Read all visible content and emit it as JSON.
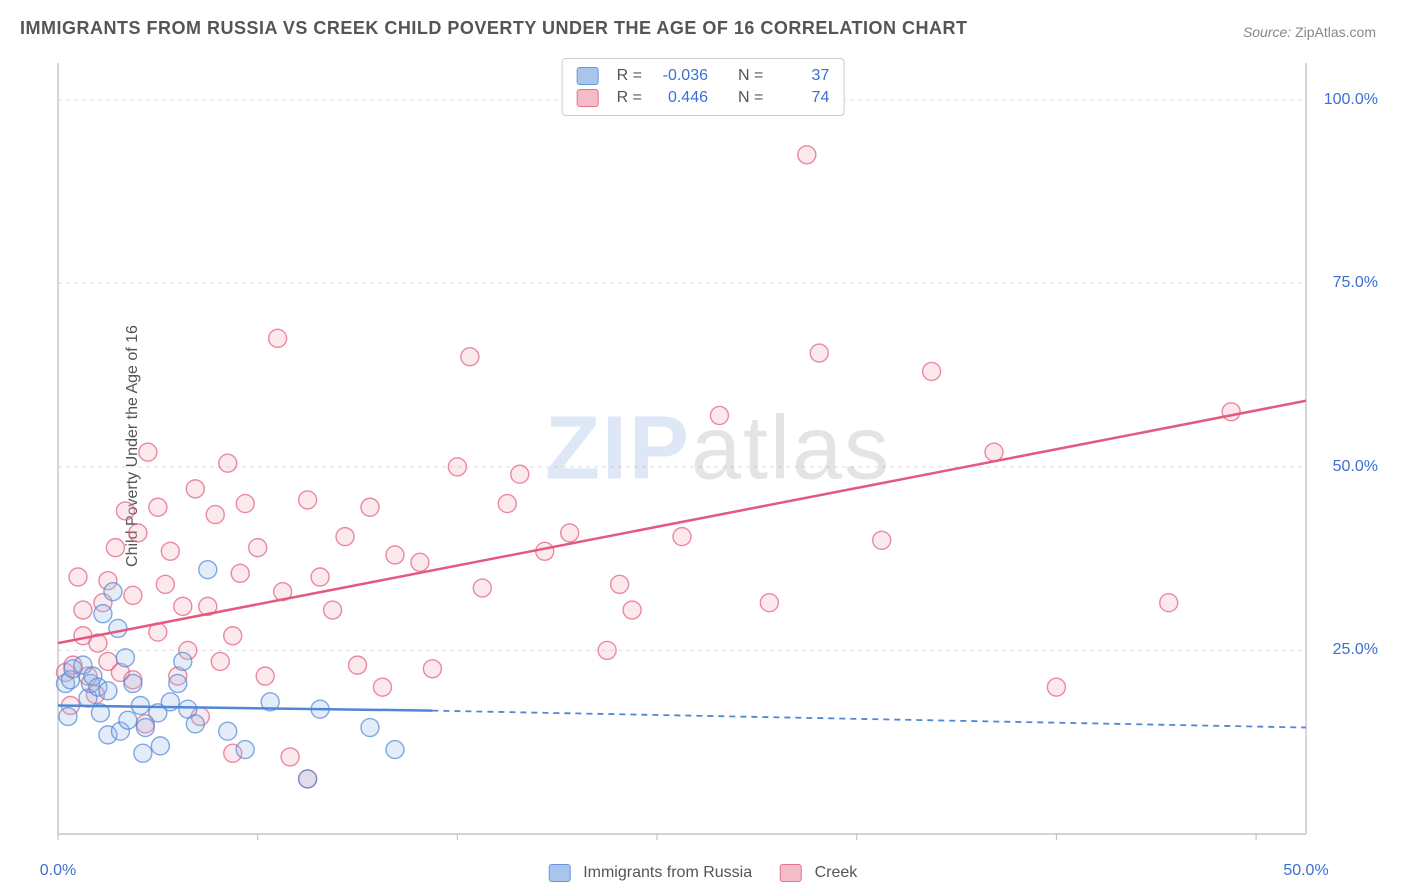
{
  "title": "IMMIGRANTS FROM RUSSIA VS CREEK CHILD POVERTY UNDER THE AGE OF 16 CORRELATION CHART",
  "source_label": "Source:",
  "source_value": "ZipAtlas.com",
  "ylabel": "Child Poverty Under the Age of 16",
  "watermark_a": "ZIP",
  "watermark_b": "atlas",
  "chart": {
    "type": "scatter",
    "xlim": [
      0,
      50
    ],
    "ylim": [
      0,
      105
    ],
    "xticks": [
      0,
      50
    ],
    "xtick_labels": [
      "0.0%",
      "50.0%"
    ],
    "yticks": [
      25,
      50,
      75,
      100
    ],
    "ytick_labels": [
      "25.0%",
      "50.0%",
      "75.0%",
      "100.0%"
    ],
    "x_minor_ticks": [
      0,
      8,
      16,
      24,
      32,
      40,
      48
    ],
    "background_color": "#ffffff",
    "grid_color": "#dddddd",
    "axis_color": "#bbbbbb",
    "tick_label_color": "#3b6fd4",
    "marker_radius": 9,
    "marker_fill_opacity": 0.28,
    "marker_stroke_width": 1.4,
    "trend_line_width": 2.5,
    "trend_dash_width": 1.8
  },
  "series": {
    "blue": {
      "label": "Immigrants from Russia",
      "color": "#4f86d6",
      "fill": "#9cbce8",
      "R": "-0.036",
      "N": "37",
      "points": [
        [
          0.3,
          20.5
        ],
        [
          0.5,
          21.0
        ],
        [
          0.6,
          22.5
        ],
        [
          0.4,
          16.0
        ],
        [
          1.0,
          23.0
        ],
        [
          1.2,
          18.5
        ],
        [
          1.3,
          20.5
        ],
        [
          1.4,
          21.5
        ],
        [
          1.6,
          20.0
        ],
        [
          1.7,
          16.5
        ],
        [
          1.8,
          30.0
        ],
        [
          2.0,
          19.5
        ],
        [
          2.0,
          13.5
        ],
        [
          2.2,
          33.0
        ],
        [
          2.4,
          28.0
        ],
        [
          2.5,
          14.0
        ],
        [
          2.7,
          24.0
        ],
        [
          2.8,
          15.5
        ],
        [
          3.0,
          20.5
        ],
        [
          3.3,
          17.5
        ],
        [
          3.4,
          11.0
        ],
        [
          3.5,
          14.5
        ],
        [
          4.0,
          16.5
        ],
        [
          4.1,
          12.0
        ],
        [
          4.5,
          18.0
        ],
        [
          4.8,
          20.5
        ],
        [
          5.0,
          23.5
        ],
        [
          5.2,
          17.0
        ],
        [
          5.5,
          15.0
        ],
        [
          6.0,
          36.0
        ],
        [
          6.8,
          14.0
        ],
        [
          7.5,
          11.5
        ],
        [
          8.5,
          18.0
        ],
        [
          10.0,
          7.5
        ],
        [
          10.5,
          17.0
        ],
        [
          12.5,
          14.5
        ],
        [
          13.5,
          11.5
        ]
      ],
      "trend": {
        "solid": [
          [
            0,
            17.5
          ],
          [
            15,
            16.8
          ]
        ],
        "dashed": [
          [
            15,
            16.8
          ],
          [
            50,
            14.5
          ]
        ]
      }
    },
    "pink": {
      "label": "Creek",
      "color": "#e25a7d",
      "fill": "#f3b0c0",
      "R": "0.446",
      "N": "74",
      "points": [
        [
          0.3,
          22.0
        ],
        [
          0.5,
          17.5
        ],
        [
          0.6,
          23.0
        ],
        [
          0.8,
          35.0
        ],
        [
          1.0,
          27.0
        ],
        [
          1.0,
          30.5
        ],
        [
          1.2,
          21.5
        ],
        [
          1.5,
          19.0
        ],
        [
          1.6,
          26.0
        ],
        [
          1.8,
          31.5
        ],
        [
          2.0,
          23.5
        ],
        [
          2.0,
          34.5
        ],
        [
          2.3,
          39.0
        ],
        [
          2.5,
          22.0
        ],
        [
          2.7,
          44.0
        ],
        [
          3.0,
          21.0
        ],
        [
          3.0,
          32.5
        ],
        [
          3.2,
          41.0
        ],
        [
          3.5,
          15.0
        ],
        [
          3.6,
          52.0
        ],
        [
          4.0,
          27.5
        ],
        [
          4.0,
          44.5
        ],
        [
          4.3,
          34.0
        ],
        [
          4.5,
          38.5
        ],
        [
          4.8,
          21.5
        ],
        [
          5.0,
          31.0
        ],
        [
          5.2,
          25.0
        ],
        [
          5.5,
          47.0
        ],
        [
          5.7,
          16.0
        ],
        [
          6.0,
          31.0
        ],
        [
          6.3,
          43.5
        ],
        [
          6.5,
          23.5
        ],
        [
          6.8,
          50.5
        ],
        [
          7.0,
          11.0
        ],
        [
          7.0,
          27.0
        ],
        [
          7.3,
          35.5
        ],
        [
          7.5,
          45.0
        ],
        [
          8.0,
          39.0
        ],
        [
          8.3,
          21.5
        ],
        [
          8.8,
          67.5
        ],
        [
          9.0,
          33.0
        ],
        [
          9.3,
          10.5
        ],
        [
          10.0,
          45.5
        ],
        [
          10.0,
          7.5
        ],
        [
          10.5,
          35.0
        ],
        [
          11.0,
          30.5
        ],
        [
          11.5,
          40.5
        ],
        [
          12.0,
          23.0
        ],
        [
          12.5,
          44.5
        ],
        [
          13.0,
          20.0
        ],
        [
          13.5,
          38.0
        ],
        [
          14.5,
          37.0
        ],
        [
          15.0,
          22.5
        ],
        [
          16.0,
          50.0
        ],
        [
          16.5,
          65.0
        ],
        [
          17.0,
          33.5
        ],
        [
          18.0,
          45.0
        ],
        [
          18.5,
          49.0
        ],
        [
          19.5,
          38.5
        ],
        [
          20.5,
          41.0
        ],
        [
          22.0,
          25.0
        ],
        [
          22.5,
          34.0
        ],
        [
          23.0,
          30.5
        ],
        [
          25.0,
          40.5
        ],
        [
          26.5,
          57.0
        ],
        [
          28.5,
          31.5
        ],
        [
          30.0,
          92.5
        ],
        [
          30.5,
          65.5
        ],
        [
          33.0,
          40.0
        ],
        [
          35.0,
          63.0
        ],
        [
          37.5,
          52.0
        ],
        [
          40.0,
          20.0
        ],
        [
          44.5,
          31.5
        ],
        [
          47.0,
          57.5
        ]
      ],
      "trend": {
        "solid": [
          [
            0,
            26.0
          ],
          [
            50,
            59.0
          ]
        ]
      }
    }
  },
  "legend_labels": {
    "R": "R =",
    "N": "N ="
  }
}
